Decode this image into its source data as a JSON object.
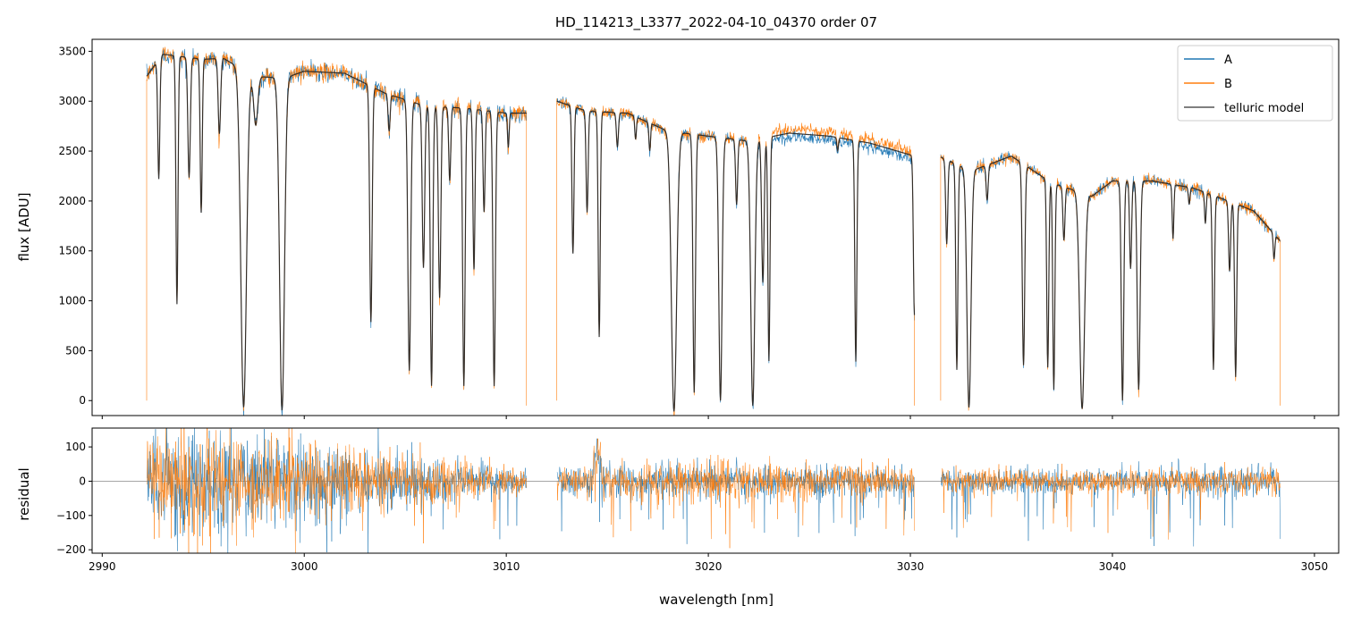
{
  "chart_data": [
    {
      "type": "line",
      "title": "HD_114213_L3377_2022-04-10_04370  order 07",
      "xlabel": "",
      "ylabel": "flux [ADU]",
      "xlim": [
        2989.5,
        3051.2
      ],
      "ylim": [
        -150,
        3620
      ],
      "yticks": [
        0,
        500,
        1000,
        1500,
        2000,
        2500,
        3000,
        3500
      ],
      "xticks": [
        2990,
        3000,
        3010,
        3020,
        3030,
        3040,
        3050
      ],
      "show_xtick_labels": false,
      "grid": false,
      "legend": {
        "position": "top-right",
        "entries": [
          "A",
          "B",
          "telluric model"
        ]
      },
      "segments": [
        [
          2992.2,
          3011.0
        ],
        [
          3012.5,
          3030.2
        ],
        [
          3031.5,
          3048.3
        ]
      ],
      "continuum_knots": [
        [
          2992.2,
          3250
        ],
        [
          2993.0,
          3470
        ],
        [
          2995.0,
          3420
        ],
        [
          2996.0,
          3430
        ],
        [
          2997.5,
          3250
        ],
        [
          2999.0,
          3230
        ],
        [
          3000.0,
          3300
        ],
        [
          3002.0,
          3280
        ],
        [
          3004.0,
          3080
        ],
        [
          3006.0,
          2950
        ],
        [
          3008.0,
          2930
        ],
        [
          3010.0,
          2880
        ],
        [
          3011.0,
          2880
        ],
        [
          3012.5,
          3000
        ],
        [
          3014.0,
          2900
        ],
        [
          3016.0,
          2880
        ],
        [
          3018.0,
          2700
        ],
        [
          3020.0,
          2650
        ],
        [
          3022.0,
          2600
        ],
        [
          3024.0,
          2680
        ],
        [
          3026.0,
          2650
        ],
        [
          3028.0,
          2580
        ],
        [
          3030.2,
          2450
        ],
        [
          3031.5,
          2440
        ],
        [
          3033.0,
          2300
        ],
        [
          3035.0,
          2450
        ],
        [
          3037.0,
          2180
        ],
        [
          3039.0,
          2050
        ],
        [
          3040.0,
          2200
        ],
        [
          3042.0,
          2200
        ],
        [
          3044.0,
          2130
        ],
        [
          3046.0,
          1980
        ],
        [
          3047.0,
          1900
        ],
        [
          3048.3,
          1600
        ]
      ],
      "absorption_lines": [
        [
          2992.8,
          0.35,
          0.05
        ],
        [
          2993.7,
          0.72,
          0.05
        ],
        [
          2994.3,
          0.35,
          0.06
        ],
        [
          2994.9,
          0.45,
          0.05
        ],
        [
          2995.8,
          0.22,
          0.06
        ],
        [
          2997.0,
          1.02,
          0.14
        ],
        [
          2997.6,
          0.15,
          0.1
        ],
        [
          2998.9,
          1.03,
          0.12
        ],
        [
          3003.3,
          0.75,
          0.06
        ],
        [
          3004.2,
          0.12,
          0.05
        ],
        [
          3005.2,
          0.9,
          0.07
        ],
        [
          3005.9,
          0.55,
          0.06
        ],
        [
          3006.3,
          0.95,
          0.06
        ],
        [
          3006.7,
          0.65,
          0.06
        ],
        [
          3007.2,
          0.25,
          0.05
        ],
        [
          3007.9,
          0.95,
          0.06
        ],
        [
          3008.4,
          0.55,
          0.05
        ],
        [
          3008.9,
          0.35,
          0.05
        ],
        [
          3009.4,
          0.95,
          0.06
        ],
        [
          3010.1,
          0.12,
          0.04
        ],
        [
          3013.3,
          0.5,
          0.05
        ],
        [
          3014.0,
          0.35,
          0.05
        ],
        [
          3014.6,
          0.78,
          0.05
        ],
        [
          3015.5,
          0.12,
          0.05
        ],
        [
          3016.4,
          0.08,
          0.04
        ],
        [
          3017.1,
          0.1,
          0.04
        ],
        [
          3018.3,
          1.04,
          0.13
        ],
        [
          3019.3,
          0.97,
          0.06
        ],
        [
          3020.6,
          1.0,
          0.08
        ],
        [
          3021.4,
          0.25,
          0.05
        ],
        [
          3022.2,
          1.02,
          0.1
        ],
        [
          3022.7,
          0.55,
          0.06
        ],
        [
          3023.0,
          0.85,
          0.05
        ],
        [
          3026.4,
          0.05,
          0.04
        ],
        [
          3027.3,
          0.85,
          0.05
        ],
        [
          3030.2,
          0.65,
          0.05
        ],
        [
          3031.8,
          0.35,
          0.05
        ],
        [
          3032.3,
          0.87,
          0.05
        ],
        [
          3032.9,
          1.03,
          0.1
        ],
        [
          3033.8,
          0.15,
          0.05
        ],
        [
          3035.6,
          0.85,
          0.06
        ],
        [
          3036.8,
          0.85,
          0.05
        ],
        [
          3037.1,
          0.95,
          0.05
        ],
        [
          3037.6,
          0.25,
          0.05
        ],
        [
          3038.5,
          1.04,
          0.12
        ],
        [
          3040.5,
          1.0,
          0.06
        ],
        [
          3040.9,
          0.4,
          0.05
        ],
        [
          3041.3,
          0.95,
          0.07
        ],
        [
          3043.0,
          0.25,
          0.04
        ],
        [
          3043.8,
          0.08,
          0.04
        ],
        [
          3044.6,
          0.15,
          0.04
        ],
        [
          3045.0,
          0.85,
          0.05
        ],
        [
          3045.8,
          0.35,
          0.05
        ],
        [
          3046.1,
          0.88,
          0.05
        ],
        [
          3048.0,
          0.15,
          0.04
        ]
      ],
      "series": [
        {
          "name": "A",
          "color": "#1f77b4",
          "linewidth": 0.6
        },
        {
          "name": "B",
          "color": "#ff7f0e",
          "linewidth": 0.6
        },
        {
          "name": "telluric model",
          "color": "#555555",
          "linewidth": 1.2
        }
      ]
    },
    {
      "type": "line",
      "title": "",
      "xlabel": "wavelength [nm]",
      "ylabel": "residual",
      "xlim": [
        2989.5,
        3051.2
      ],
      "ylim": [
        -210,
        155
      ],
      "yticks": [
        -200,
        -100,
        0,
        100
      ],
      "xticks": [
        2990,
        3000,
        3010,
        3020,
        3030,
        3040,
        3050
      ],
      "grid": false,
      "zero_line": 0,
      "residual_amplitude_knots": [
        [
          2992.2,
          70
        ],
        [
          2995.0,
          75
        ],
        [
          2999.0,
          65
        ],
        [
          3004.0,
          45
        ],
        [
          3010.0,
          18
        ],
        [
          3013.0,
          22
        ],
        [
          3020.0,
          28
        ],
        [
          3030.0,
          22
        ],
        [
          3032.0,
          18
        ],
        [
          3040.0,
          18
        ],
        [
          3048.3,
          22
        ]
      ],
      "series": [
        {
          "name": "A",
          "color": "#1f77b4",
          "linewidth": 0.5
        },
        {
          "name": "B",
          "color": "#ff7f0e",
          "linewidth": 0.5
        }
      ]
    }
  ]
}
